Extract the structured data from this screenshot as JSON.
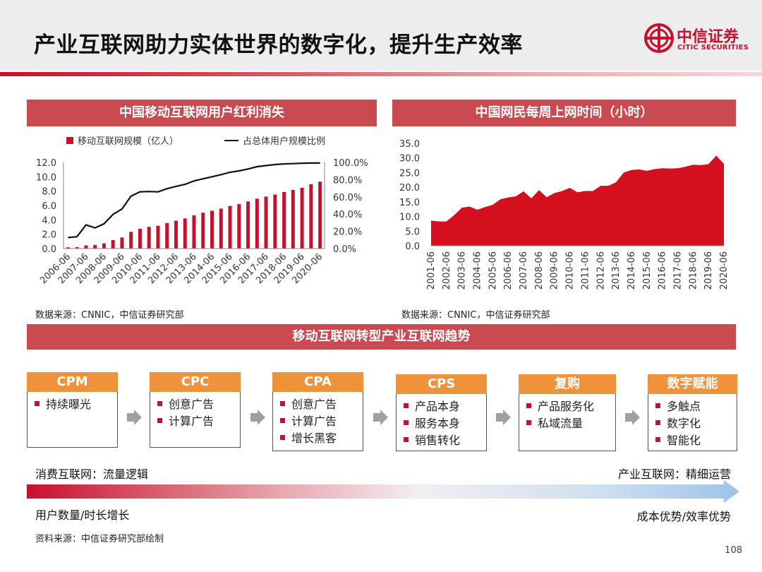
{
  "title": "产业互联网助力实体世界的数字化，提升生产效率",
  "logo": {
    "cn": "中信证券",
    "en": "CITIC SECURITIES"
  },
  "colors": {
    "brand_red": "#c8102e",
    "section_bar": "#c94a50",
    "step_header": "#f0913c",
    "arrow_gray": "#a0a0a0"
  },
  "left_panel": {
    "heading": "中国移动互联网用户红利消失",
    "source": "数据来源：CNNIC，中信证券研究部"
  },
  "right_panel": {
    "heading": "中国网民每周上网时间（小时）",
    "source": "数据来源：CNNIC，中信证券研究部"
  },
  "chart_data": [
    {
      "type": "bar+line",
      "title": "中国移动互联网用户红利消失",
      "legend": [
        "移动互联网规模（亿人）",
        "占总体用户规模比例"
      ],
      "legend_position": "top",
      "x_tick_labels": [
        "2006-06",
        "2007-06",
        "2008-06",
        "2009-06",
        "2010-06",
        "2011-06",
        "2012-06",
        "2013-06",
        "2014-06",
        "2015-06",
        "2016-06",
        "2017-06",
        "2018-06",
        "2019-06",
        "2020-06"
      ],
      "categories": [
        "2006-06",
        "2006-12",
        "2007-06",
        "2007-12",
        "2008-06",
        "2008-12",
        "2009-06",
        "2009-12",
        "2010-06",
        "2010-12",
        "2011-06",
        "2011-12",
        "2012-06",
        "2012-12",
        "2013-06",
        "2013-12",
        "2014-06",
        "2014-12",
        "2015-06",
        "2015-12",
        "2016-06",
        "2016-12",
        "2017-06",
        "2017-12",
        "2018-06",
        "2018-12",
        "2019-06",
        "2019-12",
        "2020-06"
      ],
      "series": [
        {
          "name": "移动互联网规模（亿人）",
          "axis": "left",
          "type": "bar",
          "values": [
            0.17,
            0.21,
            0.44,
            0.5,
            0.73,
            1.18,
            1.55,
            2.33,
            2.77,
            3.03,
            3.18,
            3.56,
            3.88,
            4.2,
            4.64,
            5.0,
            5.27,
            5.57,
            5.94,
            6.2,
            6.56,
            6.95,
            7.24,
            7.53,
            7.88,
            8.17,
            8.47,
            8.97,
            9.32
          ]
        },
        {
          "name": "占总体用户规模比例",
          "axis": "right",
          "type": "line",
          "values": [
            0.128,
            0.138,
            0.275,
            0.24,
            0.288,
            0.397,
            0.46,
            0.608,
            0.659,
            0.662,
            0.658,
            0.695,
            0.722,
            0.745,
            0.785,
            0.81,
            0.834,
            0.858,
            0.886,
            0.902,
            0.924,
            0.951,
            0.963,
            0.975,
            0.983,
            0.986,
            0.991,
            0.993,
            0.993
          ]
        }
      ],
      "y_left": {
        "min": 0,
        "max": 12,
        "ticks": [
          "0.0",
          "2.0",
          "4.0",
          "6.0",
          "8.0",
          "10.0",
          "12.0"
        ]
      },
      "y_right": {
        "min": 0,
        "max": 1,
        "ticks": [
          "0.0%",
          "20.0%",
          "40.0%",
          "60.0%",
          "80.0%",
          "100.0%"
        ]
      }
    },
    {
      "type": "area",
      "title": "中国网民每周上网时间（小时）",
      "x_tick_labels": [
        "2001-06",
        "2002-06",
        "2003-06",
        "2004-06",
        "2005-06",
        "2006-06",
        "2007-06",
        "2008-06",
        "2009-06",
        "2010-06",
        "2011-06",
        "2012-06",
        "2013-06",
        "2014-06",
        "2015-06",
        "2016-06",
        "2017-06",
        "2018-06",
        "2019-06",
        "2020-06"
      ],
      "categories": [
        "2001-06",
        "2001-12",
        "2002-06",
        "2002-12",
        "2003-06",
        "2003-12",
        "2004-06",
        "2004-12",
        "2005-06",
        "2005-12",
        "2006-06",
        "2006-12",
        "2007-06",
        "2007-12",
        "2008-06",
        "2008-12",
        "2009-06",
        "2009-12",
        "2010-06",
        "2010-12",
        "2011-06",
        "2011-12",
        "2012-06",
        "2012-12",
        "2013-06",
        "2013-12",
        "2014-06",
        "2014-12",
        "2015-06",
        "2015-12",
        "2016-06",
        "2016-12",
        "2017-06",
        "2017-12",
        "2018-06",
        "2018-12",
        "2019-06",
        "2019-12",
        "2020-06"
      ],
      "values": [
        8.6,
        8.3,
        8.3,
        10.5,
        13.0,
        13.4,
        12.3,
        13.2,
        14.0,
        15.9,
        16.5,
        16.9,
        18.6,
        16.2,
        19.0,
        16.6,
        18.0,
        18.7,
        19.8,
        18.3,
        18.7,
        18.7,
        20.5,
        20.5,
        21.7,
        25.0,
        25.9,
        26.1,
        25.6,
        26.2,
        26.5,
        26.4,
        26.5,
        27.0,
        27.7,
        27.6,
        27.9,
        30.8,
        28.0
      ],
      "y": {
        "min": 0,
        "max": 35,
        "ticks": [
          "0.0",
          "5.0",
          "10.0",
          "15.0",
          "20.0",
          "25.0",
          "30.0",
          "35.0"
        ]
      }
    }
  ],
  "trend": {
    "heading": "移动互联网转型产业互联网趋势",
    "steps": [
      {
        "title": "CPM",
        "items": [
          "持续曝光"
        ]
      },
      {
        "title": "CPC",
        "items": [
          "创意广告",
          "计算广告"
        ]
      },
      {
        "title": "CPA",
        "items": [
          "创意广告",
          "计算广告",
          "增长黑客"
        ]
      },
      {
        "title": "CPS",
        "items": [
          "产品本身",
          "服务本身",
          "销售转化"
        ]
      },
      {
        "title": "复购",
        "items": [
          "产品服务化",
          "私域流量"
        ]
      },
      {
        "title": "数字赋能",
        "items": [
          "多触点",
          "数字化",
          "智能化"
        ]
      }
    ],
    "left_top": "消费互联网：流量逻辑",
    "left_bottom": "用户数量/时长增长",
    "right_top": "产业互联网：精细运营",
    "right_bottom": "成本优势/效率优势"
  },
  "footer": {
    "source": "资料来源：中信证券研究部绘制",
    "page": "108"
  }
}
